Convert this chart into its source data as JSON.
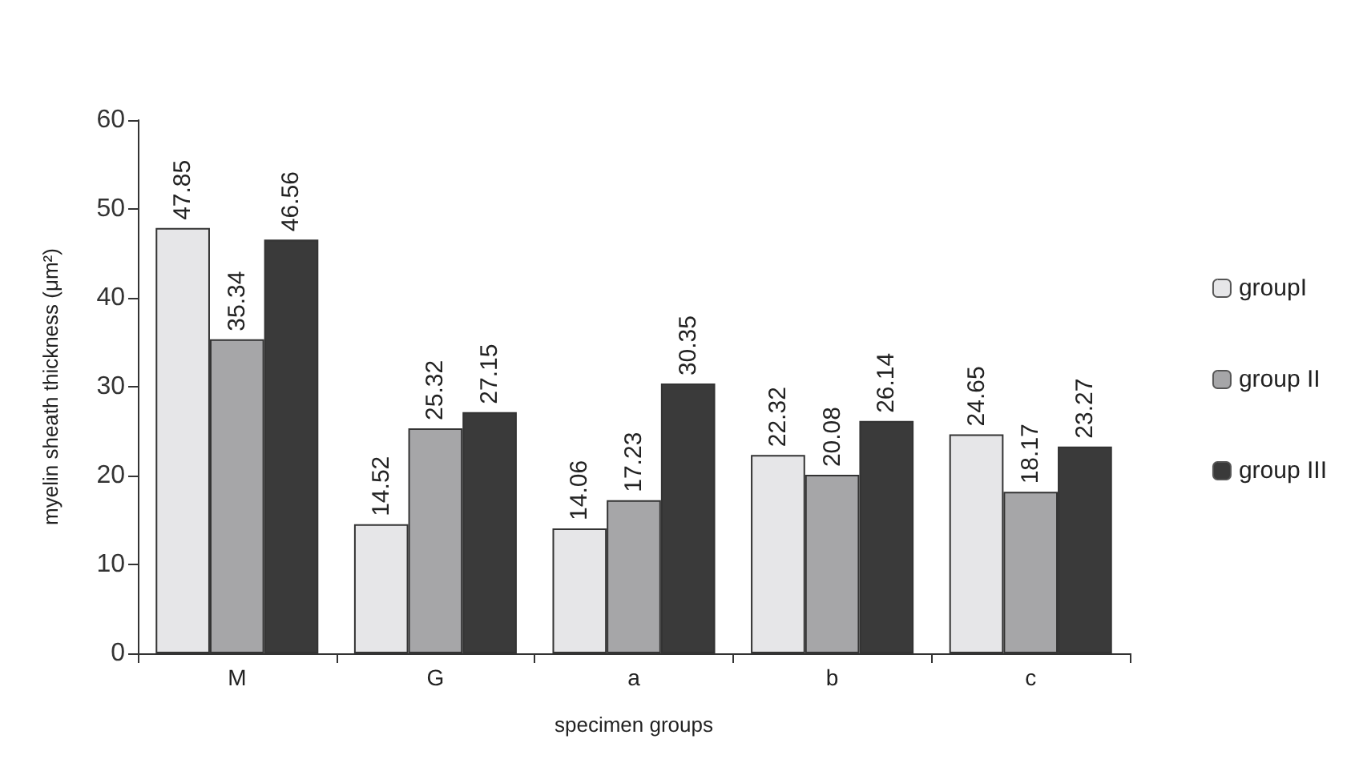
{
  "chart_data": {
    "type": "bar",
    "xlabel": "specimen groups",
    "ylabel": "myelin sheath thickness (μm²)",
    "categories": [
      "M",
      "G",
      "a",
      "b",
      "c"
    ],
    "series": [
      {
        "name": "groupI",
        "color": "#e6e6e8",
        "values": [
          47.85,
          14.52,
          14.06,
          22.32,
          24.65
        ]
      },
      {
        "name": "group II",
        "color": "#a6a6a8",
        "values": [
          35.34,
          25.32,
          17.23,
          20.08,
          18.17
        ]
      },
      {
        "name": "group III",
        "color": "#3a3a3a",
        "values": [
          46.56,
          27.15,
          30.35,
          26.14,
          23.27
        ]
      }
    ],
    "ylim": [
      0,
      60
    ],
    "yticks": [
      0,
      10,
      20,
      30,
      40,
      50,
      60
    ],
    "grid": false,
    "legend": "right",
    "data_labels": true
  }
}
